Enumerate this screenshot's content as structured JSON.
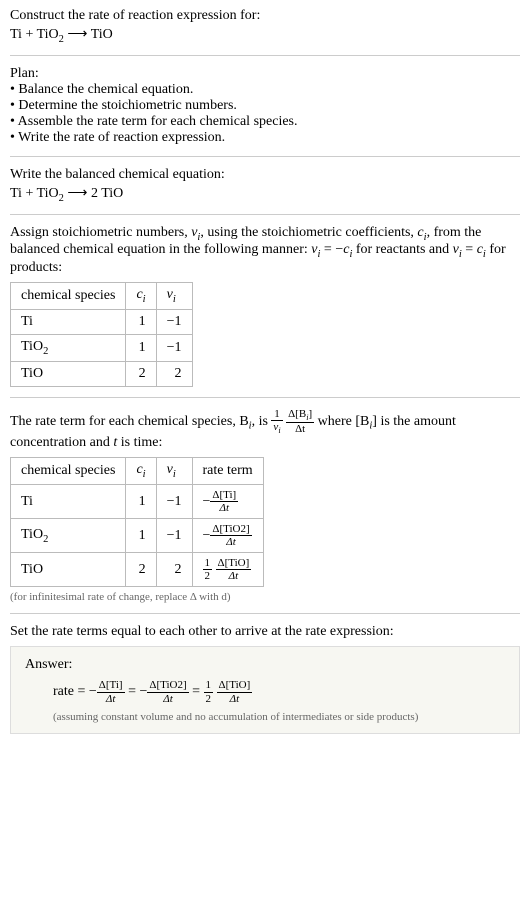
{
  "intro": {
    "line1": "Construct the rate of reaction expression for:",
    "equation_lhs": "Ti + TiO",
    "equation_sub1": "2",
    "equation_arrow": " ⟶ TiO"
  },
  "plan": {
    "title": "Plan:",
    "items": [
      "• Balance the chemical equation.",
      "• Determine the stoichiometric numbers.",
      "• Assemble the rate term for each chemical species.",
      "• Write the rate of reaction expression."
    ]
  },
  "balanced": {
    "line1": "Write the balanced chemical equation:",
    "equation": "Ti + TiO",
    "sub": "2",
    "arrow": " ⟶ 2 TiO"
  },
  "stoich": {
    "pre": "Assign stoichiometric numbers, ",
    "nu": "ν",
    "sub_i": "i",
    "mid1": ", using the stoichiometric coefficients, ",
    "c": "c",
    "mid2": ", from the balanced chemical equation in the following manner: ",
    "eq1": " = −",
    "mid3": " for reactants and ",
    "eq2": " = ",
    "mid4": " for products:",
    "table": {
      "headers": [
        "chemical species",
        "cᵢ",
        "νᵢ"
      ],
      "rows": [
        {
          "species": "Ti",
          "c": "1",
          "nu": "−1"
        },
        {
          "species_pre": "TiO",
          "species_sub": "2",
          "c": "1",
          "nu": "−1"
        },
        {
          "species": "TiO",
          "c": "2",
          "nu": "2"
        }
      ]
    }
  },
  "rateterm": {
    "pre": "The rate term for each chemical species, B",
    "mid1": ", is ",
    "mid2": " where [B",
    "mid3": "] is the amount concentration and ",
    "t": "t",
    "mid4": " is time:",
    "table": {
      "headers": [
        "chemical species",
        "cᵢ",
        "νᵢ",
        "rate term"
      ],
      "rows": [
        {
          "species": "Ti",
          "c": "1",
          "nu": "−1",
          "rate_num": "Δ[Ti]",
          "rate_den": "Δt",
          "rate_neg": true
        },
        {
          "species_pre": "TiO",
          "species_sub": "2",
          "c": "1",
          "nu": "−1",
          "rate_num": "Δ[TiO2]",
          "rate_den": "Δt",
          "rate_neg": true
        },
        {
          "species": "TiO",
          "c": "2",
          "nu": "2",
          "rate_coef_num": "1",
          "rate_coef_den": "2",
          "rate_num": "Δ[TiO]",
          "rate_den": "Δt",
          "rate_neg": false
        }
      ]
    },
    "footnote": "(for infinitesimal rate of change, replace Δ with d)"
  },
  "final": {
    "line": "Set the rate terms equal to each other to arrive at the rate expression:"
  },
  "answer": {
    "label": "Answer:",
    "rate_label": "rate = ",
    "terms": [
      {
        "neg": true,
        "num": "Δ[Ti]",
        "den": "Δt"
      },
      {
        "neg": true,
        "num": "Δ[TiO2]",
        "den": "Δt"
      },
      {
        "neg": false,
        "coef_num": "1",
        "coef_den": "2",
        "num": "Δ[TiO]",
        "den": "Δt"
      }
    ],
    "note": "(assuming constant volume and no accumulation of intermediates or side products)"
  },
  "frac_inline": {
    "one_over_nu_num": "1",
    "one_over_nu_den_pre": "ν",
    "one_over_nu_den_sub": "i",
    "dB_num_pre": "Δ[B",
    "dB_num_sub": "i",
    "dB_num_post": "]",
    "dB_den": "Δt"
  }
}
